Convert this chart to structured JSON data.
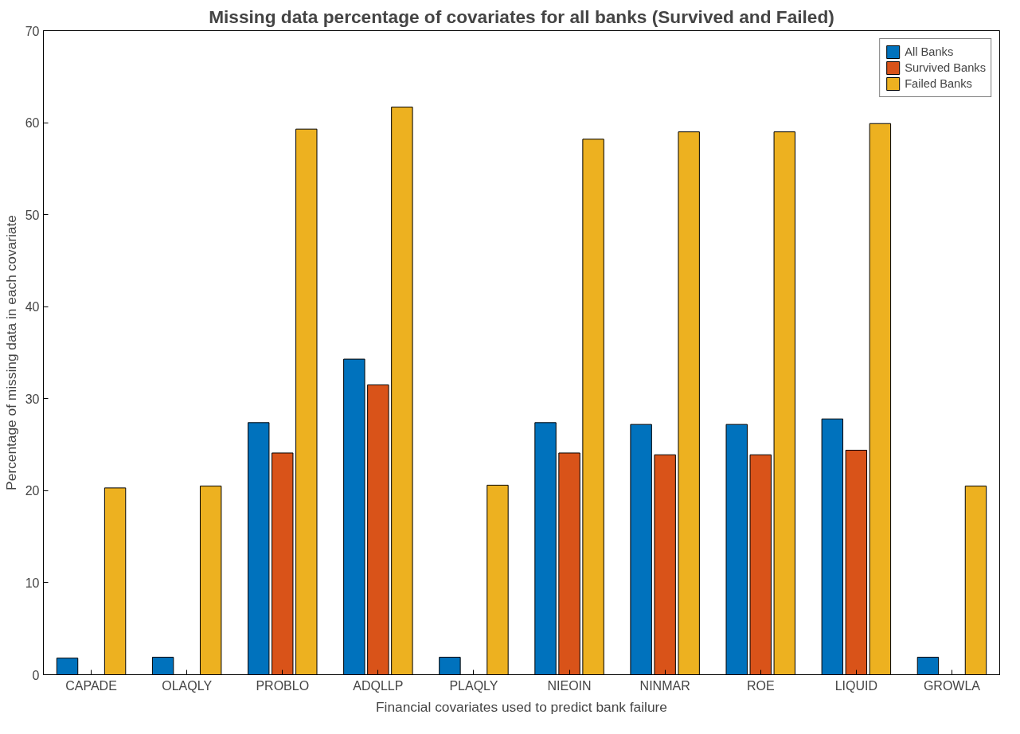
{
  "chart_data": {
    "type": "bar",
    "title": "Missing data percentage of covariates for all banks (Survived and Failed)",
    "xlabel": "Financial covariates used to predict bank failure",
    "ylabel": "Percentage of missing data in each covariate",
    "categories": [
      "CAPADE",
      "OLAQLY",
      "PROBLO",
      "ADQLLP",
      "PLAQLY",
      "NIEOIN",
      "NINMAR",
      "ROE",
      "LIQUID",
      "GROWLA"
    ],
    "series": [
      {
        "name": "All Banks",
        "color": "#0072bd",
        "values": [
          1.8,
          1.9,
          27.4,
          34.3,
          1.9,
          27.4,
          27.2,
          27.2,
          27.8,
          1.9
        ]
      },
      {
        "name": "Survived Banks",
        "color": "#d95319",
        "values": [
          null,
          null,
          24.1,
          31.5,
          null,
          24.1,
          23.9,
          23.9,
          24.4,
          null
        ]
      },
      {
        "name": "Failed Banks",
        "color": "#edb120",
        "values": [
          20.3,
          20.5,
          59.3,
          61.7,
          20.6,
          58.2,
          59.0,
          59.0,
          59.9,
          20.5
        ]
      }
    ],
    "ylim": [
      0,
      70
    ],
    "yticks": [
      0,
      10,
      20,
      30,
      40,
      50,
      60,
      70
    ],
    "grid": false,
    "legend": "top right"
  }
}
